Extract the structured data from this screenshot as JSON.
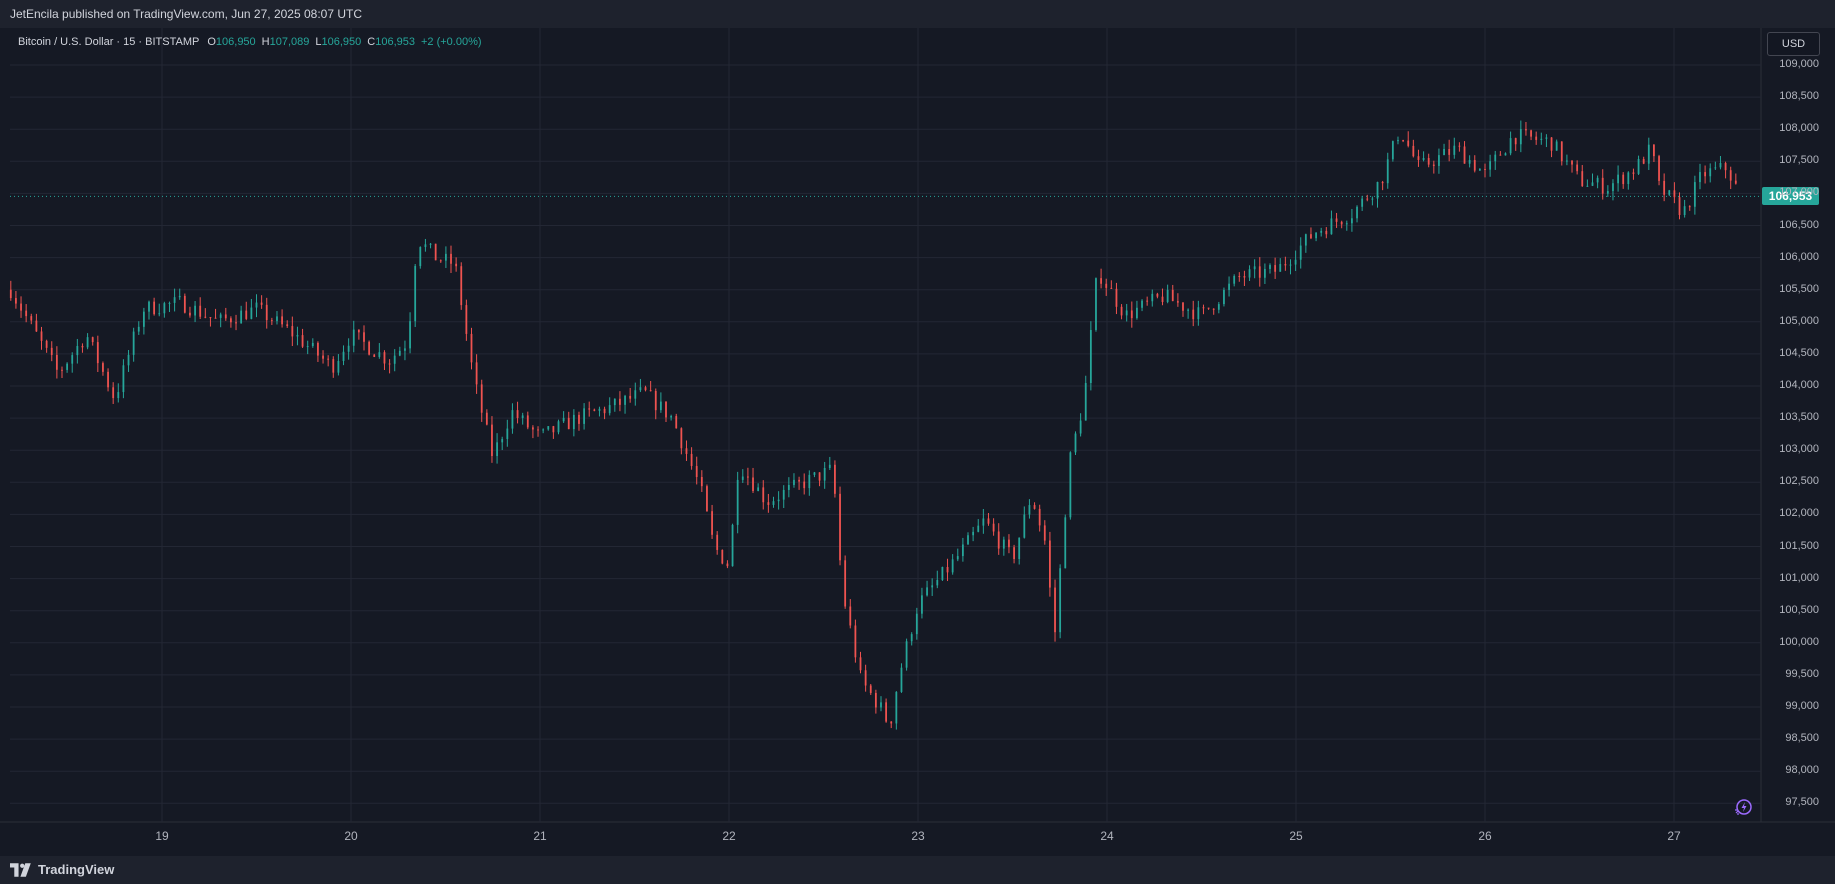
{
  "header": {
    "publisher_line": "JetEncila published on TradingView.com, Jun 27, 2025 08:07 UTC"
  },
  "legend": {
    "symbol": "Bitcoin / U.S. Dollar · 15 · BITSTAMP",
    "o_label": "O",
    "o_value": "106,950",
    "h_label": "H",
    "h_value": "107,089",
    "l_label": "L",
    "l_value": "106,950",
    "c_label": "C",
    "c_value": "106,953",
    "change": "+2 (+0.00%)"
  },
  "currency_button": "USD",
  "last_price_tag": "106,953",
  "footer": {
    "brand": "TradingView"
  },
  "icons": {
    "logo": "tradingview-logo-icon",
    "flash": "lightning-icon"
  },
  "colors": {
    "background": "#151924",
    "grid": "#232734",
    "up": "#26a69a",
    "down": "#ef5350",
    "last_price": "#26a69a",
    "accent": "#7b5cff"
  },
  "chart_data": {
    "type": "candlestick",
    "title": "Bitcoin / U.S. Dollar · 15 · BITSTAMP",
    "x_tick_labels": [
      "19",
      "20",
      "21",
      "22",
      "23",
      "24",
      "25",
      "26",
      "27"
    ],
    "y_tick_labels": [
      "109,000",
      "108,500",
      "108,000",
      "107,500",
      "107,000",
      "106,500",
      "106,000",
      "105,500",
      "105,000",
      "104,500",
      "104,000",
      "103,500",
      "103,000",
      "102,500",
      "102,000",
      "101,500",
      "101,000",
      "100,500",
      "100,000",
      "99,500",
      "99,000",
      "98,500",
      "98,000",
      "97,500"
    ],
    "ylim": [
      97250,
      109250
    ],
    "xlim_days": [
      18.2,
      27.45
    ],
    "last_price": 106953,
    "grid": true,
    "price_path": [
      {
        "day": 18.2,
        "price": 105500
      },
      {
        "day": 18.45,
        "price": 104200
      },
      {
        "day": 18.6,
        "price": 104800
      },
      {
        "day": 18.75,
        "price": 103800
      },
      {
        "day": 18.9,
        "price": 105200
      },
      {
        "day": 19.1,
        "price": 105300
      },
      {
        "day": 19.3,
        "price": 105000
      },
      {
        "day": 19.5,
        "price": 105200
      },
      {
        "day": 19.7,
        "price": 104800
      },
      {
        "day": 19.9,
        "price": 104300
      },
      {
        "day": 20.0,
        "price": 104800
      },
      {
        "day": 20.2,
        "price": 104400
      },
      {
        "day": 20.3,
        "price": 104700
      },
      {
        "day": 20.35,
        "price": 106300
      },
      {
        "day": 20.45,
        "price": 106000
      },
      {
        "day": 20.55,
        "price": 105900
      },
      {
        "day": 20.65,
        "price": 104100
      },
      {
        "day": 20.75,
        "price": 102900
      },
      {
        "day": 20.85,
        "price": 103600
      },
      {
        "day": 21.0,
        "price": 103200
      },
      {
        "day": 21.2,
        "price": 103500
      },
      {
        "day": 21.4,
        "price": 103700
      },
      {
        "day": 21.55,
        "price": 103900
      },
      {
        "day": 21.7,
        "price": 103500
      },
      {
        "day": 21.85,
        "price": 102400
      },
      {
        "day": 21.92,
        "price": 101500
      },
      {
        "day": 22.0,
        "price": 101200
      },
      {
        "day": 22.05,
        "price": 102800
      },
      {
        "day": 22.2,
        "price": 102200
      },
      {
        "day": 22.4,
        "price": 102500
      },
      {
        "day": 22.55,
        "price": 102700
      },
      {
        "day": 22.6,
        "price": 100800
      },
      {
        "day": 22.7,
        "price": 99400
      },
      {
        "day": 22.8,
        "price": 99000
      },
      {
        "day": 22.85,
        "price": 98700
      },
      {
        "day": 22.9,
        "price": 99500
      },
      {
        "day": 23.0,
        "price": 100600
      },
      {
        "day": 23.2,
        "price": 101300
      },
      {
        "day": 23.35,
        "price": 101900
      },
      {
        "day": 23.5,
        "price": 101300
      },
      {
        "day": 23.6,
        "price": 102300
      },
      {
        "day": 23.68,
        "price": 101500
      },
      {
        "day": 23.72,
        "price": 100000
      },
      {
        "day": 23.8,
        "price": 102800
      },
      {
        "day": 23.88,
        "price": 103800
      },
      {
        "day": 23.95,
        "price": 105800
      },
      {
        "day": 24.1,
        "price": 105100
      },
      {
        "day": 24.3,
        "price": 105400
      },
      {
        "day": 24.5,
        "price": 105100
      },
      {
        "day": 24.7,
        "price": 105700
      },
      {
        "day": 24.9,
        "price": 105800
      },
      {
        "day": 25.1,
        "price": 106400
      },
      {
        "day": 25.3,
        "price": 106700
      },
      {
        "day": 25.45,
        "price": 107200
      },
      {
        "day": 25.55,
        "price": 108000
      },
      {
        "day": 25.65,
        "price": 107400
      },
      {
        "day": 25.85,
        "price": 107700
      },
      {
        "day": 26.0,
        "price": 107300
      },
      {
        "day": 26.15,
        "price": 107900
      },
      {
        "day": 26.35,
        "price": 107800
      },
      {
        "day": 26.5,
        "price": 107200
      },
      {
        "day": 26.65,
        "price": 107100
      },
      {
        "day": 26.8,
        "price": 107400
      },
      {
        "day": 26.88,
        "price": 107700
      },
      {
        "day": 26.92,
        "price": 107100
      },
      {
        "day": 27.05,
        "price": 106700
      },
      {
        "day": 27.15,
        "price": 107300
      },
      {
        "day": 27.28,
        "price": 107400
      },
      {
        "day": 27.35,
        "price": 106953
      }
    ]
  }
}
